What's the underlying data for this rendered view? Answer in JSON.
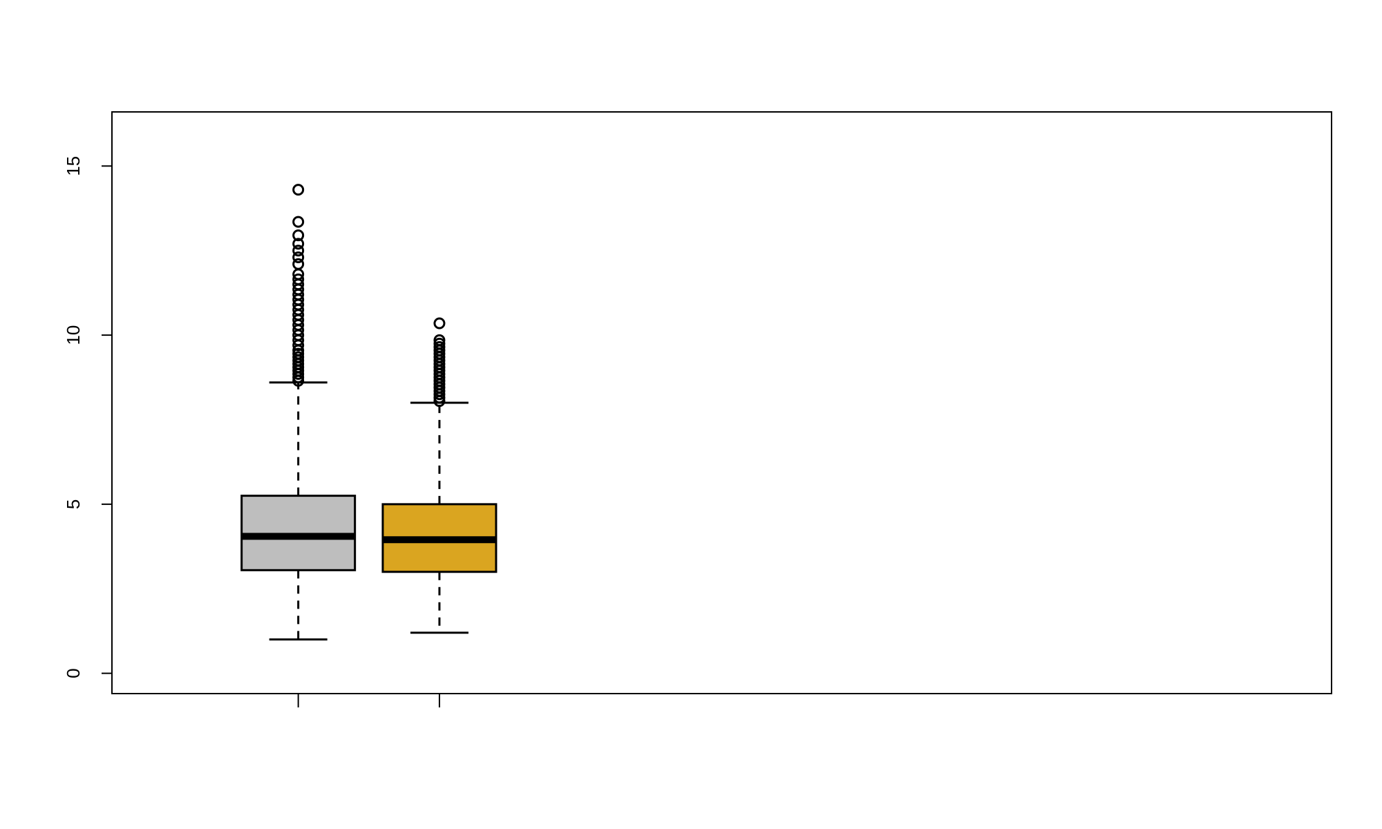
{
  "chart_data": {
    "type": "boxplot",
    "title": "",
    "xlabel": "",
    "ylabel": "",
    "ylim": [
      -0.6,
      16.6
    ],
    "y_ticks": [
      0,
      5,
      10,
      15
    ],
    "x_ticks": [
      1,
      2
    ],
    "xlim": [
      -0.32,
      8.32
    ],
    "grid": false,
    "legend": "none",
    "series": [
      {
        "x": 1,
        "fill": "#bebebe",
        "whisker_low": 1.0,
        "q1": 3.05,
        "median": 4.05,
        "q3": 5.25,
        "whisker_high": 8.6,
        "outliers": [
          8.65,
          8.75,
          8.85,
          8.95,
          9.05,
          9.15,
          9.25,
          9.35,
          9.45,
          9.55,
          9.7,
          9.85,
          10.0,
          10.15,
          10.3,
          10.45,
          10.6,
          10.75,
          10.9,
          11.05,
          11.2,
          11.35,
          11.5,
          11.65,
          11.8,
          12.1,
          12.3,
          12.5,
          12.7,
          12.95,
          13.35,
          14.3
        ]
      },
      {
        "x": 2,
        "fill": "#daa520",
        "whisker_low": 1.2,
        "q1": 3.0,
        "median": 3.95,
        "q3": 5.0,
        "whisker_high": 8.0,
        "outliers": [
          8.05,
          8.15,
          8.25,
          8.35,
          8.45,
          8.55,
          8.65,
          8.75,
          8.85,
          8.95,
          9.05,
          9.15,
          9.25,
          9.35,
          9.45,
          9.55,
          9.65,
          9.75,
          9.85,
          10.35
        ]
      }
    ]
  }
}
